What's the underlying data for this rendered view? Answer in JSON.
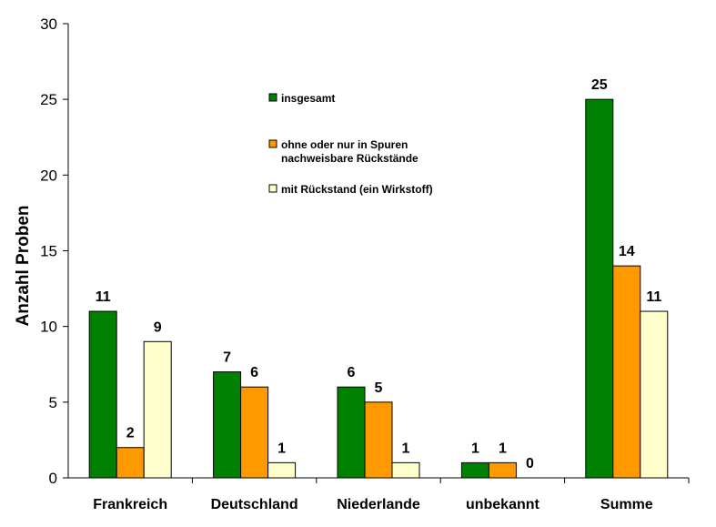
{
  "chart_data": {
    "type": "bar",
    "title": "",
    "xlabel": "",
    "ylabel": "Anzahl Proben",
    "ylim": [
      0,
      30
    ],
    "yticks": [
      0,
      5,
      10,
      15,
      20,
      25,
      30
    ],
    "grid": false,
    "legend_position": "top-center",
    "categories": [
      "Frankreich",
      "Deutschland",
      "Niederlande",
      "unbekannt",
      "Summe"
    ],
    "series": [
      {
        "name": "insgesamt",
        "color": "#008000",
        "values": [
          11,
          7,
          6,
          1,
          25
        ],
        "labels": [
          "11",
          "7",
          "6",
          "1",
          "25"
        ]
      },
      {
        "name": "ohne oder nur in Spuren nachweisbare Rückstände",
        "legend_lines": [
          "ohne oder nur in Spuren",
          "nachweisbare Rückstände"
        ],
        "color": "#FF9900",
        "values": [
          2,
          6,
          5,
          1,
          14
        ],
        "labels": [
          "2",
          "6",
          "5",
          "1",
          "14"
        ]
      },
      {
        "name": "mit Rückstand (ein Wirkstoff)",
        "color": "#FFFFCC",
        "values": [
          9,
          1,
          1,
          0,
          11
        ],
        "labels": [
          "9",
          "1",
          "1",
          "0",
          "11"
        ]
      }
    ]
  }
}
